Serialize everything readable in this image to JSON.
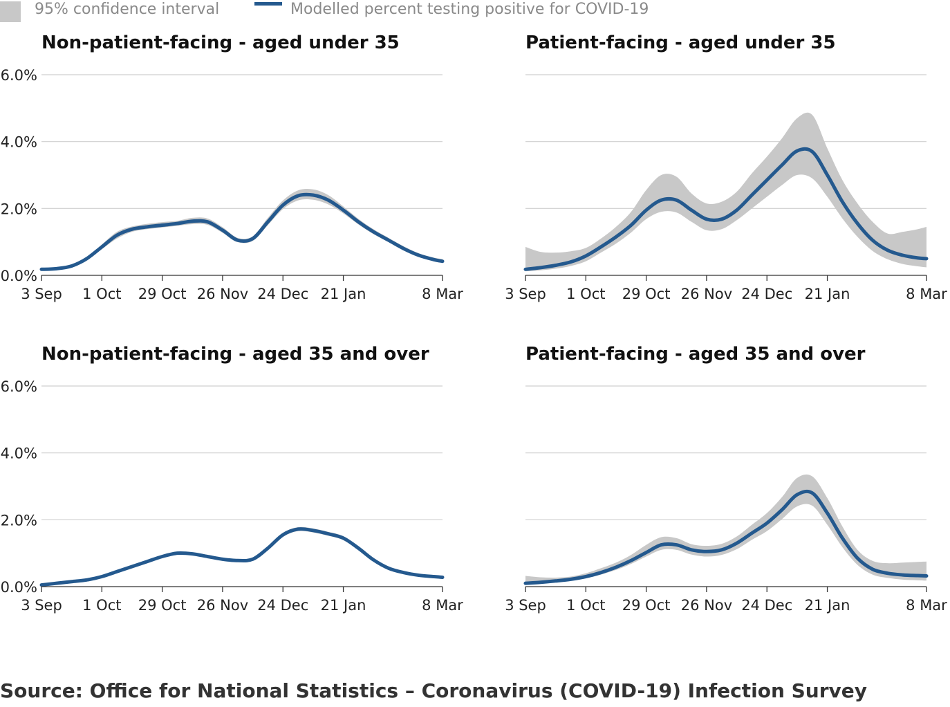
{
  "legend": {
    "ci_label": "95% confidence interval",
    "line_label": "Modelled percent testing positive for COVID-19",
    "ci_color": "#c8c8c8",
    "line_color": "#24598e"
  },
  "source": "Source: Office for National Statistics – Coronavirus (COVID-19) Infection Survey",
  "chart_data": [
    {
      "type": "line",
      "title": "Non-patient-facing - aged under 35",
      "xlabel": "",
      "ylabel": "",
      "x_ticks": [
        "3 Sep",
        "1 Oct",
        "29 Oct",
        "26 Nov",
        "24 Dec",
        "21 Jan",
        "8 Mar"
      ],
      "x_tick_days": [
        0,
        28,
        56,
        84,
        112,
        140,
        186
      ],
      "y_ticks": [
        "0.0%",
        "2.0%",
        "4.0%",
        "6.0%"
      ],
      "ylim": [
        0,
        6
      ],
      "grid": true,
      "x_days": [
        0,
        7,
        14,
        21,
        28,
        35,
        42,
        49,
        56,
        63,
        70,
        77,
        84,
        91,
        98,
        105,
        112,
        119,
        126,
        133,
        140,
        147,
        154,
        161,
        168,
        175,
        182,
        186
      ],
      "series": [
        {
          "name": "Modelled percent testing positive for COVID-19",
          "values": [
            0.18,
            0.2,
            0.28,
            0.5,
            0.85,
            1.2,
            1.38,
            1.45,
            1.5,
            1.55,
            1.62,
            1.6,
            1.35,
            1.05,
            1.1,
            1.6,
            2.1,
            2.38,
            2.4,
            2.25,
            1.95,
            1.6,
            1.3,
            1.05,
            0.8,
            0.6,
            0.47,
            0.42
          ]
        },
        {
          "name": "95% confidence interval",
          "lower": [
            0.15,
            0.17,
            0.24,
            0.45,
            0.78,
            1.1,
            1.3,
            1.38,
            1.43,
            1.48,
            1.53,
            1.51,
            1.27,
            0.99,
            1.03,
            1.5,
            1.98,
            2.24,
            2.26,
            2.12,
            1.85,
            1.52,
            1.23,
            0.99,
            0.74,
            0.55,
            0.42,
            0.37
          ],
          "upper": [
            0.21,
            0.23,
            0.32,
            0.55,
            0.92,
            1.3,
            1.46,
            1.54,
            1.59,
            1.63,
            1.72,
            1.7,
            1.44,
            1.12,
            1.17,
            1.72,
            2.24,
            2.54,
            2.57,
            2.4,
            2.06,
            1.69,
            1.38,
            1.12,
            0.87,
            0.66,
            0.53,
            0.49
          ]
        }
      ]
    },
    {
      "type": "line",
      "title": "Patient-facing - aged under 35",
      "xlabel": "",
      "ylabel": "",
      "x_ticks": [
        "3 Sep",
        "1 Oct",
        "29 Oct",
        "26 Nov",
        "24 Dec",
        "21 Jan",
        "8 Mar"
      ],
      "x_tick_days": [
        0,
        28,
        56,
        84,
        112,
        140,
        186
      ],
      "y_ticks": [],
      "ylim": [
        0,
        6
      ],
      "grid": true,
      "x_days": [
        0,
        7,
        14,
        21,
        28,
        35,
        42,
        49,
        56,
        63,
        70,
        77,
        84,
        91,
        98,
        105,
        112,
        119,
        126,
        133,
        140,
        147,
        154,
        161,
        168,
        175,
        182,
        186
      ],
      "series": [
        {
          "name": "Modelled percent testing positive for COVID-19",
          "values": [
            0.18,
            0.23,
            0.3,
            0.4,
            0.58,
            0.85,
            1.15,
            1.5,
            1.95,
            2.25,
            2.25,
            1.95,
            1.68,
            1.68,
            1.95,
            2.4,
            2.85,
            3.3,
            3.72,
            3.7,
            3.0,
            2.2,
            1.55,
            1.05,
            0.75,
            0.6,
            0.52,
            0.5
          ]
        },
        {
          "name": "95% confidence interval",
          "lower": [
            0.12,
            0.15,
            0.2,
            0.28,
            0.42,
            0.68,
            0.95,
            1.28,
            1.68,
            1.9,
            1.88,
            1.6,
            1.35,
            1.38,
            1.65,
            2.0,
            2.35,
            2.7,
            3.0,
            2.9,
            2.35,
            1.7,
            1.15,
            0.73,
            0.48,
            0.34,
            0.27,
            0.24
          ],
          "upper": [
            0.85,
            0.7,
            0.68,
            0.72,
            0.82,
            1.1,
            1.45,
            1.9,
            2.55,
            3.0,
            2.95,
            2.45,
            2.15,
            2.2,
            2.5,
            3.05,
            3.55,
            4.1,
            4.7,
            4.8,
            3.8,
            2.85,
            2.15,
            1.6,
            1.25,
            1.3,
            1.38,
            1.45
          ]
        }
      ]
    },
    {
      "type": "line",
      "title": "Non-patient-facing - aged 35 and over",
      "xlabel": "",
      "ylabel": "",
      "x_ticks": [
        "3 Sep",
        "1 Oct",
        "29 Oct",
        "26 Nov",
        "24 Dec",
        "21 Jan",
        "8 Mar"
      ],
      "x_tick_days": [
        0,
        28,
        56,
        84,
        112,
        140,
        186
      ],
      "y_ticks": [
        "0.0%",
        "2.0%",
        "4.0%",
        "6.0%"
      ],
      "ylim": [
        0,
        6
      ],
      "grid": true,
      "x_days": [
        0,
        7,
        14,
        21,
        28,
        35,
        42,
        49,
        56,
        63,
        70,
        77,
        84,
        91,
        98,
        105,
        112,
        119,
        126,
        133,
        140,
        147,
        154,
        161,
        168,
        175,
        182,
        186
      ],
      "series": [
        {
          "name": "Modelled percent testing positive for COVID-19",
          "values": [
            0.05,
            0.1,
            0.15,
            0.2,
            0.3,
            0.45,
            0.6,
            0.75,
            0.9,
            1.0,
            0.98,
            0.9,
            0.82,
            0.78,
            0.82,
            1.15,
            1.55,
            1.72,
            1.68,
            1.58,
            1.45,
            1.15,
            0.8,
            0.55,
            0.42,
            0.34,
            0.3,
            0.28
          ]
        },
        {
          "name": "95% confidence interval",
          "lower": [
            0.03,
            0.08,
            0.13,
            0.18,
            0.27,
            0.42,
            0.57,
            0.72,
            0.86,
            0.96,
            0.94,
            0.86,
            0.78,
            0.74,
            0.78,
            1.1,
            1.49,
            1.66,
            1.62,
            1.52,
            1.39,
            1.1,
            0.76,
            0.52,
            0.39,
            0.31,
            0.27,
            0.25
          ],
          "upper": [
            0.07,
            0.12,
            0.17,
            0.22,
            0.33,
            0.48,
            0.63,
            0.78,
            0.94,
            1.04,
            1.02,
            0.94,
            0.86,
            0.82,
            0.86,
            1.2,
            1.61,
            1.78,
            1.74,
            1.64,
            1.51,
            1.2,
            0.84,
            0.58,
            0.45,
            0.37,
            0.33,
            0.31
          ]
        }
      ]
    },
    {
      "type": "line",
      "title": "Patient-facing - aged 35 and over",
      "xlabel": "",
      "ylabel": "",
      "x_ticks": [
        "3 Sep",
        "1 Oct",
        "29 Oct",
        "26 Nov",
        "24 Dec",
        "21 Jan",
        "8 Mar"
      ],
      "x_tick_days": [
        0,
        28,
        56,
        84,
        112,
        140,
        186
      ],
      "y_ticks": [],
      "ylim": [
        0,
        6
      ],
      "grid": true,
      "x_days": [
        0,
        7,
        14,
        21,
        28,
        35,
        42,
        49,
        56,
        63,
        70,
        77,
        84,
        91,
        98,
        105,
        112,
        119,
        126,
        133,
        140,
        147,
        154,
        161,
        168,
        175,
        182,
        186
      ],
      "series": [
        {
          "name": "Modelled percent testing positive for COVID-19",
          "values": [
            0.1,
            0.13,
            0.17,
            0.22,
            0.3,
            0.42,
            0.58,
            0.78,
            1.02,
            1.25,
            1.25,
            1.1,
            1.05,
            1.1,
            1.3,
            1.6,
            1.9,
            2.3,
            2.75,
            2.8,
            2.2,
            1.45,
            0.85,
            0.52,
            0.4,
            0.35,
            0.33,
            0.32
          ]
        },
        {
          "name": "95% confidence interval",
          "lower": [
            0.06,
            0.09,
            0.13,
            0.18,
            0.25,
            0.36,
            0.5,
            0.68,
            0.9,
            1.1,
            1.1,
            0.96,
            0.9,
            0.95,
            1.12,
            1.4,
            1.66,
            2.02,
            2.4,
            2.42,
            1.85,
            1.18,
            0.65,
            0.36,
            0.26,
            0.21,
            0.19,
            0.18
          ],
          "upper": [
            0.32,
            0.28,
            0.27,
            0.3,
            0.4,
            0.55,
            0.72,
            0.95,
            1.25,
            1.48,
            1.45,
            1.27,
            1.22,
            1.28,
            1.5,
            1.85,
            2.2,
            2.68,
            3.25,
            3.3,
            2.65,
            1.8,
            1.1,
            0.77,
            0.7,
            0.72,
            0.74,
            0.75
          ]
        }
      ]
    }
  ]
}
